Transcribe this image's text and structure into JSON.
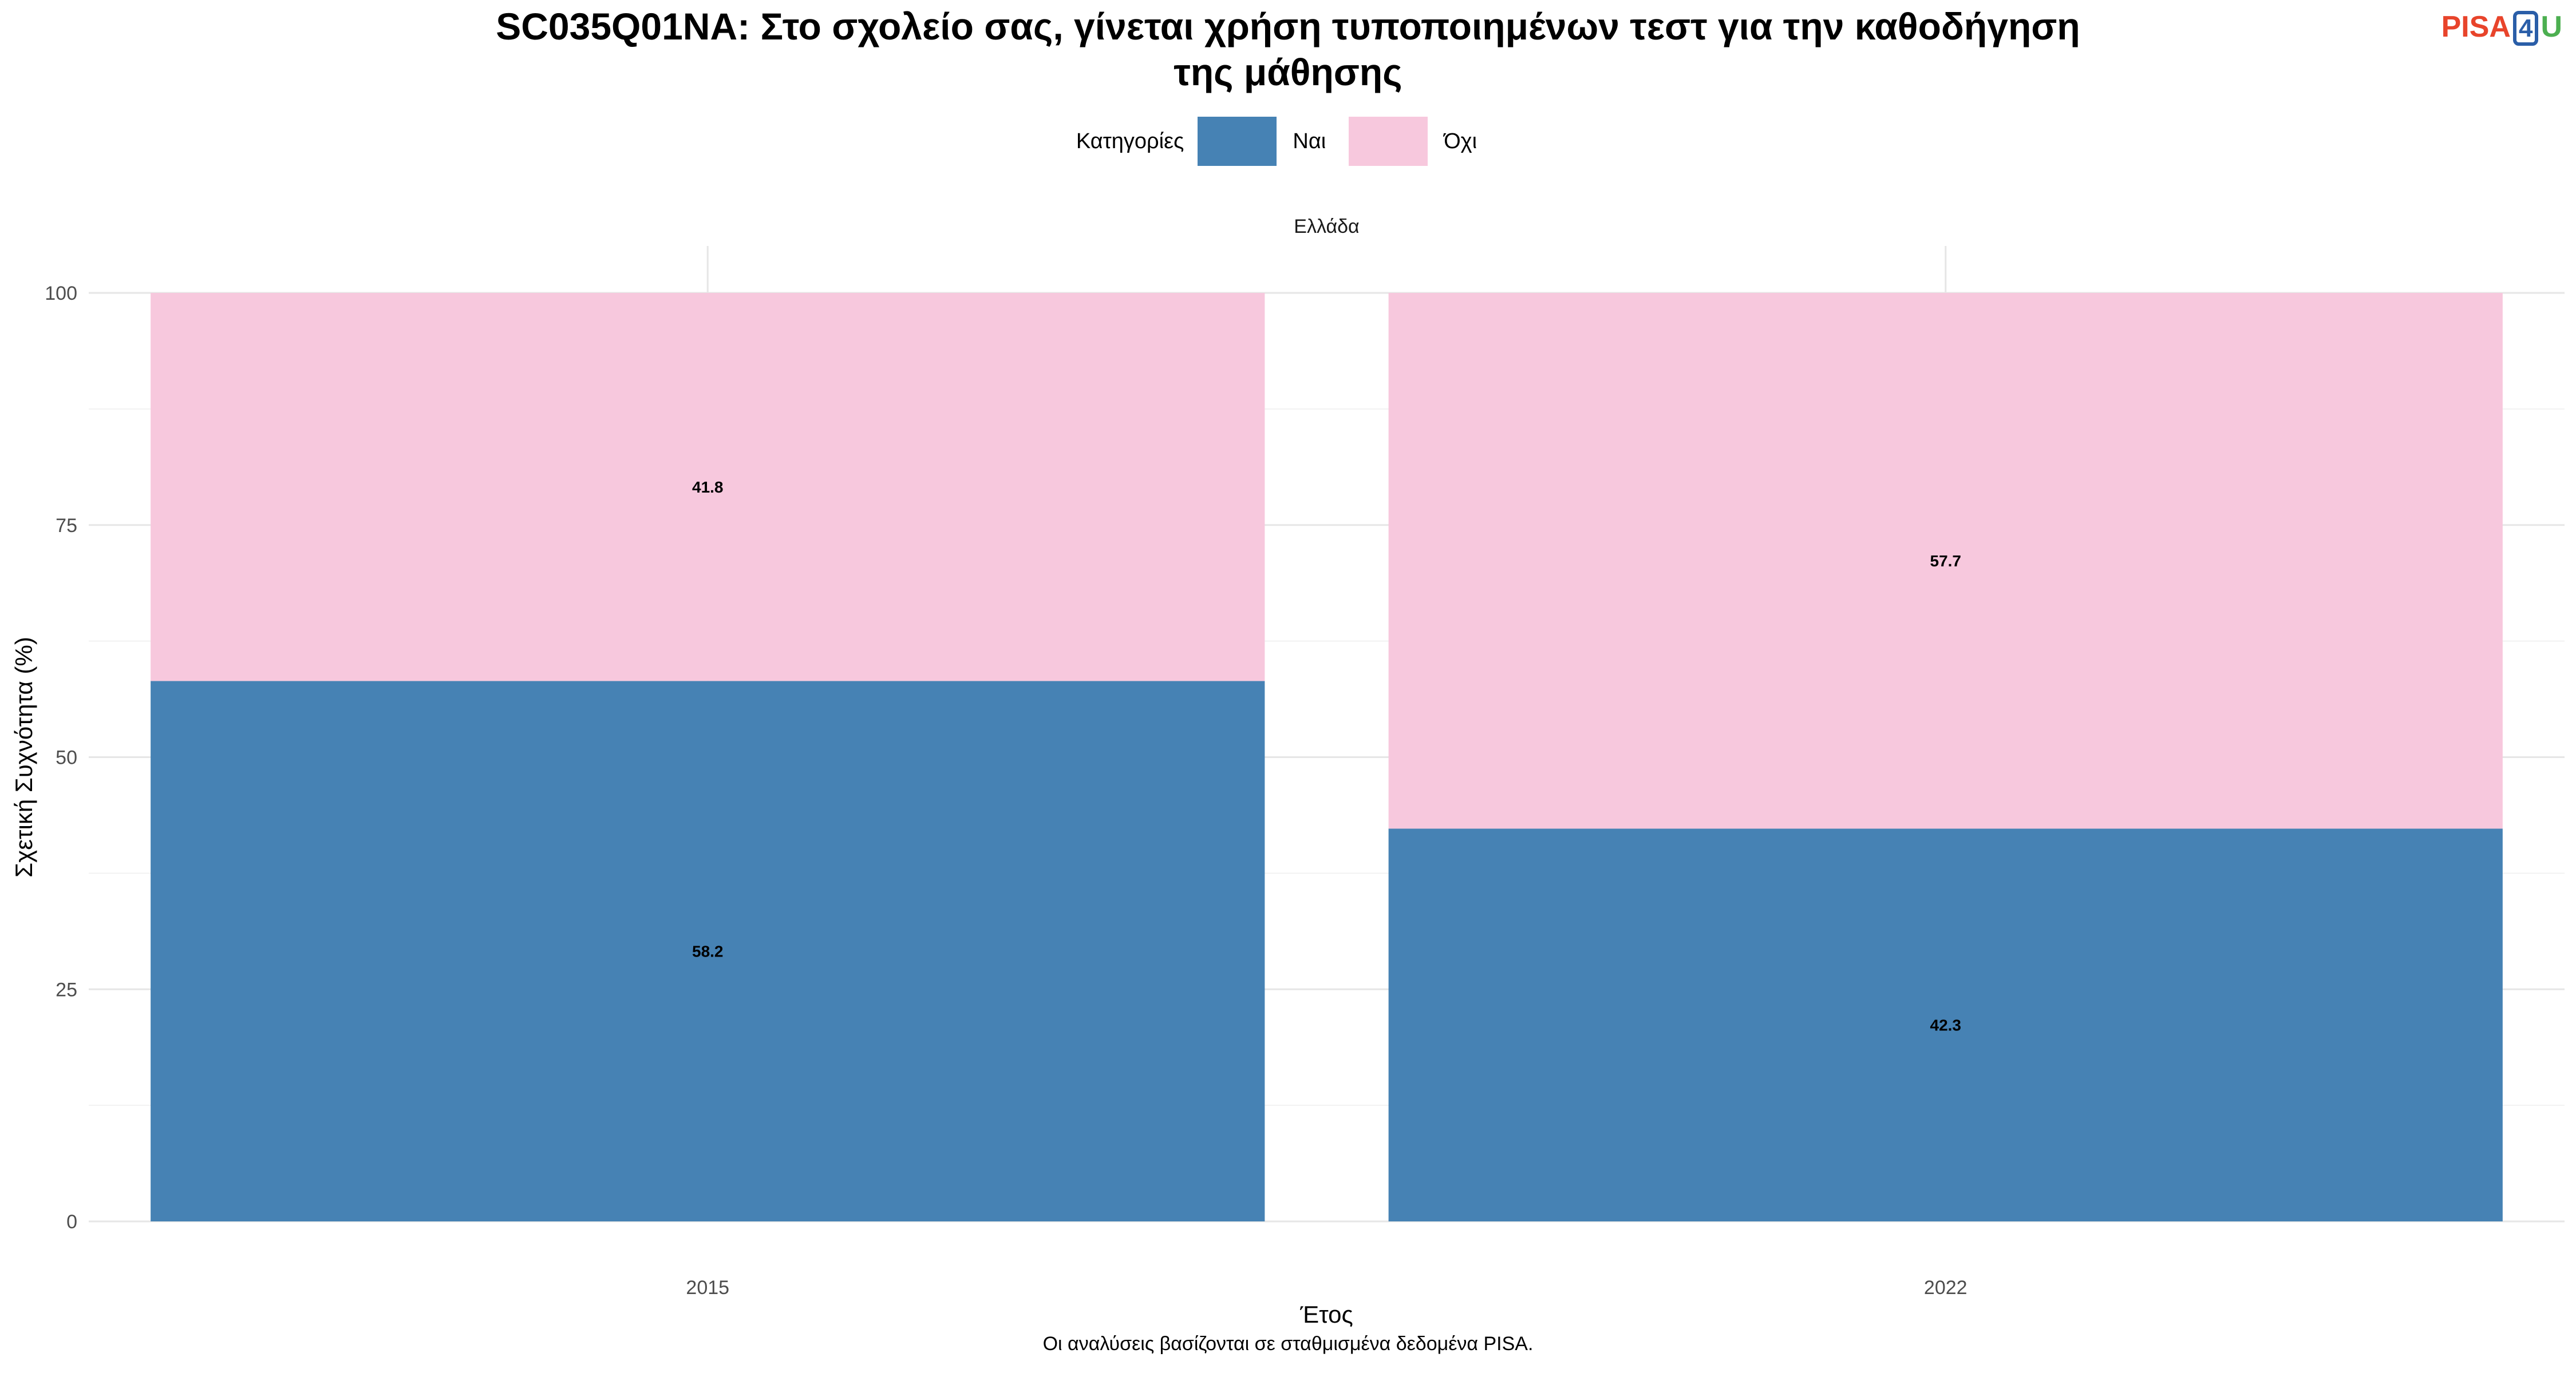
{
  "chart_data": {
    "type": "bar",
    "stacked": true,
    "title_lines": [
      "SC035Q01NA: Στο σχολείο σας, γίνεται χρήση τυποποιημένων τεστ για την καθοδήγηση",
      "της μάθησης"
    ],
    "facet": "Ελλάδα",
    "xlabel": "Έτος",
    "ylabel": "Σχετική Συχνότητα (%)",
    "categories": [
      "2015",
      "2022"
    ],
    "ylim": [
      0,
      100
    ],
    "yticks": [
      0,
      25,
      50,
      75,
      100
    ],
    "legend_title": "Κατηγορίες",
    "legend_position": "top",
    "grid": true,
    "series": [
      {
        "name": "Ναι",
        "color": "#4682b4",
        "values": [
          58.2,
          42.3
        ],
        "labels": [
          "58.2",
          "42.3"
        ]
      },
      {
        "name": "Όχι",
        "color": "#f7c8dd",
        "values": [
          41.8,
          57.7
        ],
        "labels": [
          "41.8",
          "57.7"
        ]
      }
    ]
  },
  "logo": {
    "part1": "PISA",
    "part2": "4",
    "part3": "U"
  },
  "caption": "Οι αναλύσεις βασίζονται σε σταθμισμένα δεδομένα PISA."
}
